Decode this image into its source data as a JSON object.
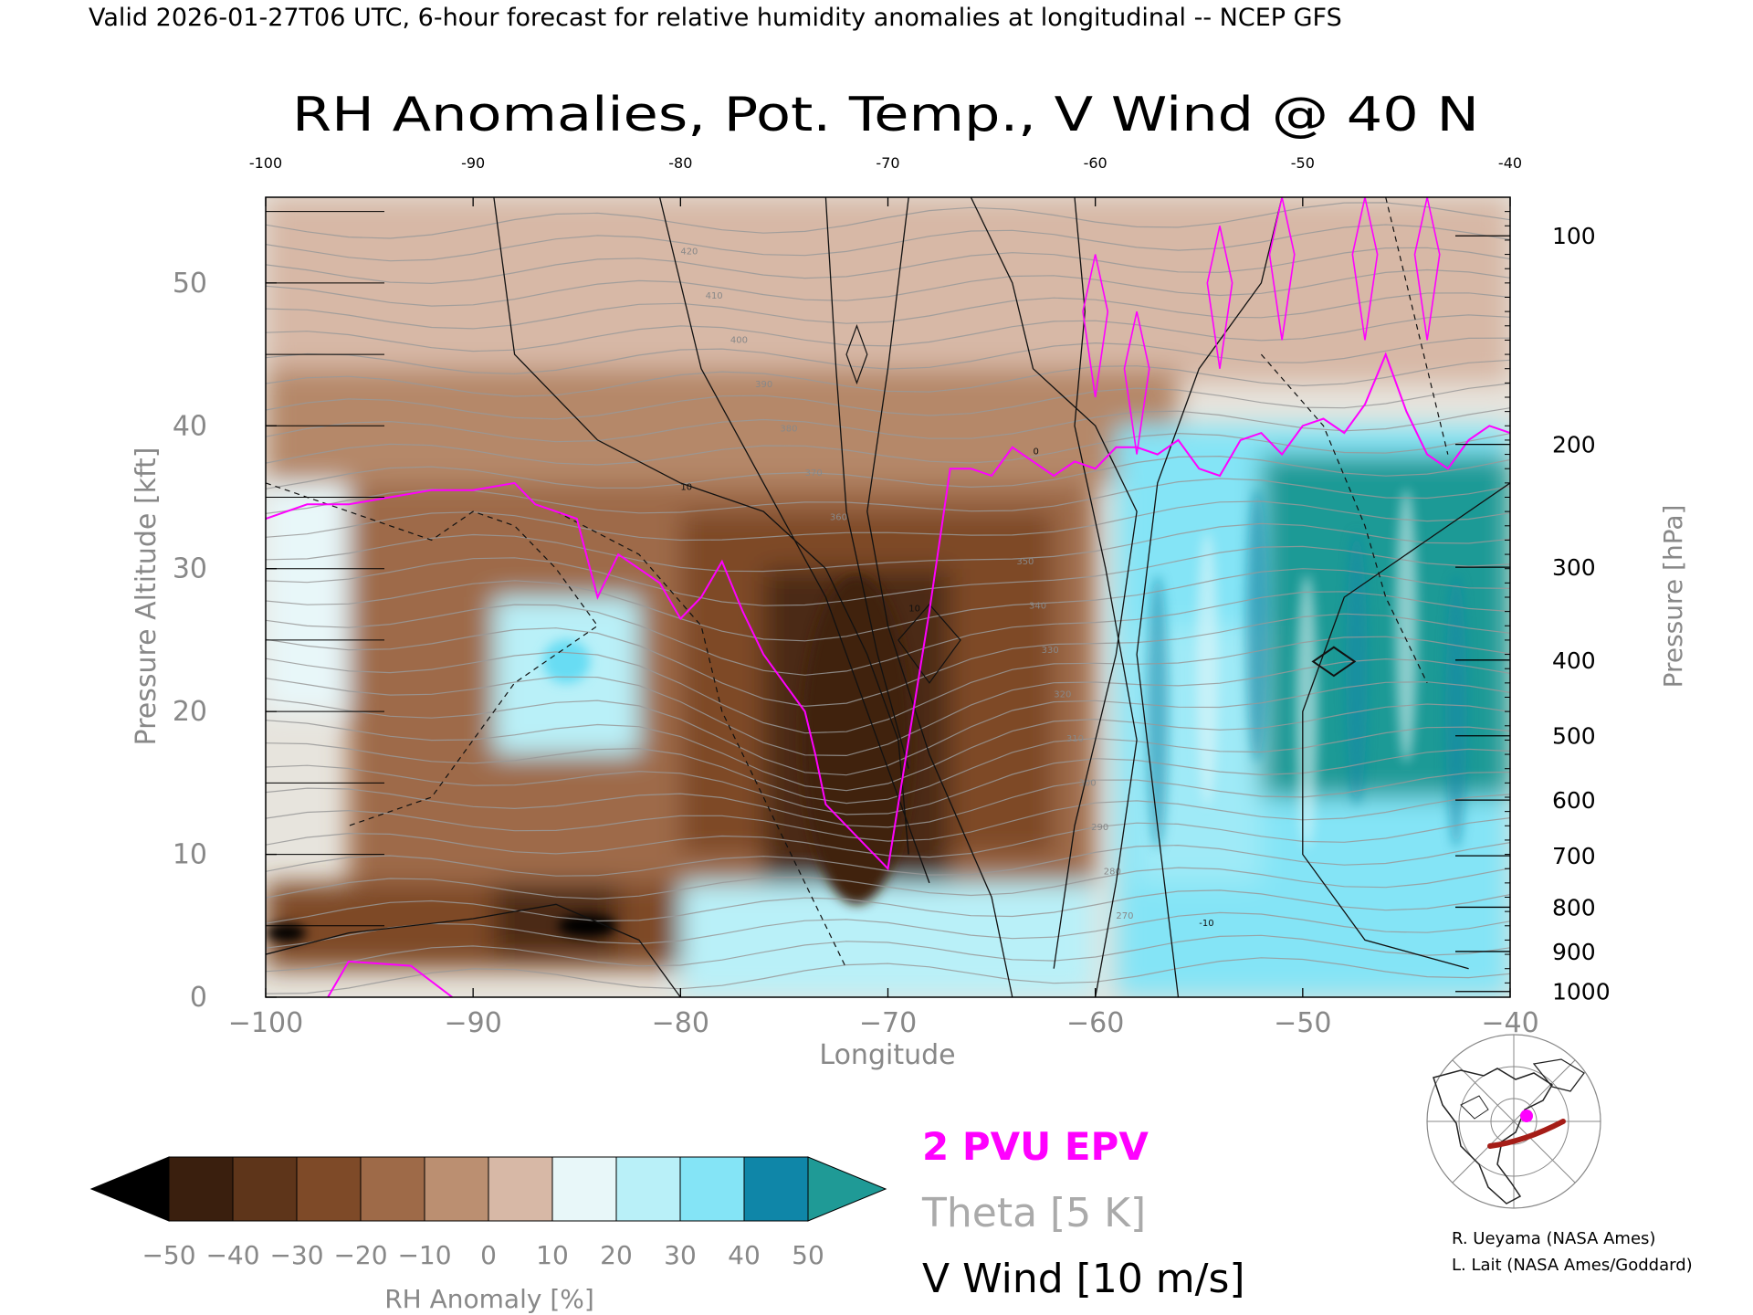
{
  "header": "Valid 2026-01-27T06 UTC, 6-hour forecast for relative humidity anomalies at longitudinal -- NCEP GFS",
  "chart_data": {
    "type": "heatmap",
    "title": "RH Anomalies, Pot. Temp., V Wind @ 40 N",
    "xlabel": "Longitude",
    "ylabel_left": "Pressure Altitude [kft]",
    "ylabel_right": "Pressure [hPa]",
    "xlim": [
      -100,
      -40
    ],
    "ylim": [
      0,
      56
    ],
    "x_ticks": [
      "−100",
      "−90",
      "−80",
      "−70",
      "−60",
      "−50",
      "−40"
    ],
    "x_ticks_top": [
      "-100",
      "-90",
      "-80",
      "-70",
      "-60",
      "-50",
      "-40"
    ],
    "y_ticks": [
      "0",
      "10",
      "20",
      "30",
      "40",
      "50"
    ],
    "pressure_ticks": [
      {
        "label": "1000",
        "kft": 0.4
      },
      {
        "label": "900",
        "kft": 3.2
      },
      {
        "label": "800",
        "kft": 6.3
      },
      {
        "label": "700",
        "kft": 9.9
      },
      {
        "label": "600",
        "kft": 13.8
      },
      {
        "label": "500",
        "kft": 18.3
      },
      {
        "label": "400",
        "kft": 23.6
      },
      {
        "label": "300",
        "kft": 30.1
      },
      {
        "label": "200",
        "kft": 38.7
      },
      {
        "label": "100",
        "kft": 53.3
      }
    ],
    "colorbar": {
      "label": "RH Anomaly [%]",
      "ticks": [
        "−50",
        "−40",
        "−30",
        "−20",
        "−10",
        "0",
        "10",
        "20",
        "30",
        "40",
        "50"
      ],
      "colors": [
        "#3a1f0e",
        "#5e351a",
        "#7e4a28",
        "#9e6a48",
        "#bb8f71",
        "#d7b8a6",
        "#e8f7f9",
        "#b9f0f8",
        "#84e4f6",
        "#49d3ef",
        "#1fb4d9",
        "#0f86a8"
      ],
      "under_color": "#000000",
      "over_color": "#1f9a96"
    },
    "legend": [
      {
        "text": "2 PVU EPV",
        "color": "#ff00ff"
      },
      {
        "text": "Theta [5 K]",
        "color": "#aaaaaa"
      },
      {
        "text": "V Wind [10 m/s]",
        "color": "#000000"
      }
    ],
    "theta_labels": [
      "420",
      "410",
      "400",
      "390",
      "380",
      "370",
      "360",
      "350",
      "340",
      "330",
      "320",
      "310",
      "300",
      "290",
      "280",
      "270"
    ],
    "wind_labels": [
      "10",
      "0",
      "-10"
    ],
    "epv_2pvu": {
      "x": [
        -100,
        -98,
        -96,
        -94,
        -92,
        -90,
        -88,
        -87,
        -86,
        -85,
        -84,
        -83,
        -82,
        -81,
        -80,
        -79,
        -78,
        -77,
        -76,
        -75,
        -74,
        -73.5,
        -73,
        -72,
        -71,
        -70,
        -69,
        -68,
        -67.5,
        -67,
        -66,
        -65,
        -64,
        -63,
        -62,
        -61,
        -60,
        -59,
        -58,
        -57,
        -56,
        -55,
        -54,
        -53,
        -52,
        -51,
        -50,
        -49,
        -48,
        -47,
        -46,
        -45,
        -44,
        -43,
        -42,
        -41,
        -40
      ],
      "y": [
        33.5,
        34.5,
        34.5,
        35,
        35.5,
        35.5,
        36,
        34.5,
        34,
        33.5,
        28,
        31,
        30,
        29,
        26.5,
        28,
        30.5,
        27,
        24,
        22,
        20,
        17,
        13.5,
        12,
        10.5,
        9,
        18,
        27,
        32,
        37,
        37,
        36.5,
        38.5,
        37.5,
        36.5,
        37.5,
        37,
        38.5,
        38.5,
        38,
        39,
        37,
        36.5,
        39,
        39.5,
        38,
        40,
        40.5,
        39.5,
        41.5,
        45,
        41,
        38,
        37,
        39,
        40,
        39.5
      ]
    },
    "rh_fields": [
      {
        "x": -88,
        "y": 5,
        "value": -50
      },
      {
        "x": -99,
        "y": 4.5,
        "value": -50
      },
      {
        "x": -71,
        "y": 22,
        "value": -40
      },
      {
        "x": -85.5,
        "y": 23.5,
        "value": 30
      },
      {
        "x": -47,
        "y": 30,
        "value": 50
      },
      {
        "x": -52,
        "y": 28,
        "value": 50
      },
      {
        "x": -55,
        "y": 15,
        "value": 30
      },
      {
        "x": -60,
        "y": 48,
        "value": 0
      },
      {
        "x": -80,
        "y": 48,
        "value": 0
      }
    ]
  },
  "map_inset": {
    "label": "40 N cross-section location"
  },
  "credits": [
    "R. Ueyama (NASA Ames)",
    "L. Lait (NASA Ames/Goddard)"
  ]
}
